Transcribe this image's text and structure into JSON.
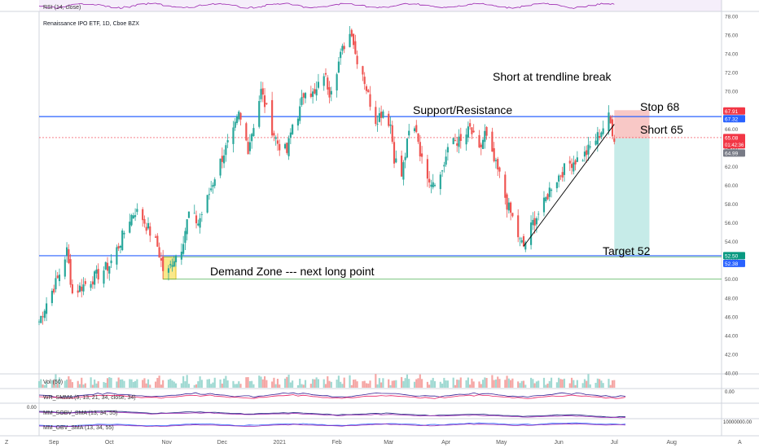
{
  "colors": {
    "up": "#26a69a",
    "down": "#ef5350",
    "hline": "#2962ff",
    "trend": "#000000",
    "stopZone": "#f8c8c6",
    "targetZone": "#c6ebe8",
    "demand": "#f7e26b",
    "rsi": "#9c27b0",
    "rsiBand": "#efe2f7"
  },
  "chart_data": {
    "type": "candlestick",
    "title": "Renaissance IPO ETF, 1D, Cboe BZX",
    "x_tick_labels": [
      "Sep",
      "Oct",
      "Nov",
      "Dec",
      "2021",
      "Feb",
      "Mar",
      "Apr",
      "May",
      "Jun",
      "Jul",
      "Aug"
    ],
    "y_tick_labels": [
      "78.00",
      "76.00",
      "74.00",
      "72.00",
      "70.00",
      "68.00",
      "66.00",
      "64.00",
      "62.00",
      "60.00",
      "58.00",
      "56.00",
      "54.00",
      "52.00",
      "50.00",
      "48.00",
      "46.00",
      "44.00",
      "42.00",
      "40.00"
    ],
    "ylim": [
      40,
      78
    ],
    "x_tick_dates": [
      "2020-09-01",
      "2020-10-01",
      "2020-11-01",
      "2020-12-01",
      "2021-01-01",
      "2021-02-01",
      "2021-03-01",
      "2021-04-01",
      "2021-05-01",
      "2021-06-01",
      "2021-07-01",
      "2021-08-01"
    ],
    "xlim": [
      "2020-08-24",
      "2021-08-28"
    ],
    "close_path": [
      [
        "2020-08-24",
        45.5
      ],
      [
        "2020-08-28",
        47.5
      ],
      [
        "2020-09-03",
        50.0
      ],
      [
        "2020-09-08",
        53.0
      ],
      [
        "2020-09-11",
        48.5
      ],
      [
        "2020-09-18",
        49.5
      ],
      [
        "2020-09-25",
        50.5
      ],
      [
        "2020-10-01",
        51.5
      ],
      [
        "2020-10-07",
        54.0
      ],
      [
        "2020-10-12",
        56.5
      ],
      [
        "2020-10-15",
        57.3
      ],
      [
        "2020-10-19",
        56.5
      ],
      [
        "2020-10-23",
        55.0
      ],
      [
        "2020-10-27",
        53.5
      ],
      [
        "2020-10-30",
        51.0
      ],
      [
        "2020-11-02",
        50.8
      ],
      [
        "2020-11-04",
        52.0
      ],
      [
        "2020-11-09",
        53.5
      ],
      [
        "2020-11-13",
        57.0
      ],
      [
        "2020-11-18",
        56.0
      ],
      [
        "2020-11-23",
        58.5
      ],
      [
        "2020-11-27",
        61.0
      ],
      [
        "2020-12-02",
        63.5
      ],
      [
        "2020-12-07",
        65.5
      ],
      [
        "2020-12-10",
        67.5
      ],
      [
        "2020-12-15",
        64.0
      ],
      [
        "2020-12-18",
        66.5
      ],
      [
        "2020-12-22",
        70.0
      ],
      [
        "2020-12-28",
        66.0
      ],
      [
        "2020-12-31",
        64.5
      ],
      [
        "2021-01-05",
        63.5
      ],
      [
        "2021-01-08",
        66.5
      ],
      [
        "2021-01-12",
        68.0
      ],
      [
        "2021-01-15",
        70.5
      ],
      [
        "2021-01-20",
        69.5
      ],
      [
        "2021-01-25",
        72.0
      ],
      [
        "2021-01-28",
        70.0
      ],
      [
        "2021-02-01",
        72.5
      ],
      [
        "2021-02-05",
        75.0
      ],
      [
        "2021-02-09",
        76.5
      ],
      [
        "2021-02-11",
        74.0
      ],
      [
        "2021-02-15",
        72.0
      ],
      [
        "2021-02-18",
        69.5
      ],
      [
        "2021-02-22",
        67.0
      ],
      [
        "2021-02-26",
        68.0
      ],
      [
        "2021-03-02",
        66.5
      ],
      [
        "2021-03-04",
        63.0
      ],
      [
        "2021-03-08",
        61.0
      ],
      [
        "2021-03-12",
        65.5
      ],
      [
        "2021-03-16",
        66.0
      ],
      [
        "2021-03-19",
        62.5
      ],
      [
        "2021-03-24",
        60.5
      ],
      [
        "2021-03-29",
        61.0
      ],
      [
        "2021-04-01",
        63.0
      ],
      [
        "2021-04-05",
        65.0
      ],
      [
        "2021-04-09",
        64.5
      ],
      [
        "2021-04-14",
        66.0
      ],
      [
        "2021-04-19",
        63.5
      ],
      [
        "2021-04-22",
        65.5
      ],
      [
        "2021-04-26",
        63.0
      ],
      [
        "2021-04-30",
        61.0
      ],
      [
        "2021-05-04",
        58.0
      ],
      [
        "2021-05-07",
        56.5
      ],
      [
        "2021-05-11",
        54.0
      ],
      [
        "2021-05-13",
        53.5
      ],
      [
        "2021-05-18",
        56.0
      ],
      [
        "2021-05-24",
        58.0
      ],
      [
        "2021-05-28",
        60.0
      ],
      [
        "2021-06-03",
        61.5
      ],
      [
        "2021-06-08",
        62.5
      ],
      [
        "2021-06-14",
        63.0
      ],
      [
        "2021-06-18",
        64.0
      ],
      [
        "2021-06-23",
        65.5
      ],
      [
        "2021-06-28",
        67.2
      ],
      [
        "2021-07-01",
        65.1
      ]
    ],
    "last_price": 65.08,
    "price_labels": [
      {
        "value": 67.91,
        "text": "67.91",
        "color": "#f23645"
      },
      {
        "value": 67.32,
        "text": "67.32",
        "color": "#2962ff"
      },
      {
        "value": 65.08,
        "text": "65.08",
        "sub": "01:42:36",
        "color": "#f23645"
      },
      {
        "value": 64.99,
        "text": "64.99",
        "color": "#787b86"
      },
      {
        "value": 52.5,
        "text": "52.50",
        "color": "#089981"
      },
      {
        "value": 52.38,
        "text": "52.38",
        "color": "#2962ff"
      }
    ],
    "support_resistance_level": 67.32,
    "demand_line_level": 52.38,
    "demand_zone_low": 50.0,
    "trendline": {
      "from": [
        "2021-05-13",
        53.5
      ],
      "to": [
        "2021-07-01",
        66.5
      ]
    },
    "position": {
      "entry": 65.0,
      "stop": 68.0,
      "target": 52.5,
      "from": "2021-07-01",
      "to": "2021-07-20"
    },
    "annotations": {
      "short_break": "Short at trendline break",
      "support_resistance": "Support/Resistance",
      "stop": "Stop 68",
      "short": "Short 65",
      "target": "Target 52",
      "demand": "Demand Zone --- next long point"
    },
    "indicators": {
      "rsi_label": "RSI (14, close)",
      "vol_label": "Vol (50)",
      "wr_label": "WR_SMMA (9, 13, 21, 34, close, 34)",
      "wr_value": "0.00",
      "sobv_label": "MM_SOBV_SMA (13, 34, 55)",
      "sobv_value": "0.00",
      "obv_label": "MM_OBV_SMA (13, 34, 55)",
      "obv_value": "10000000.00"
    }
  },
  "toolbar": {
    "left": "Z",
    "right": "A"
  }
}
